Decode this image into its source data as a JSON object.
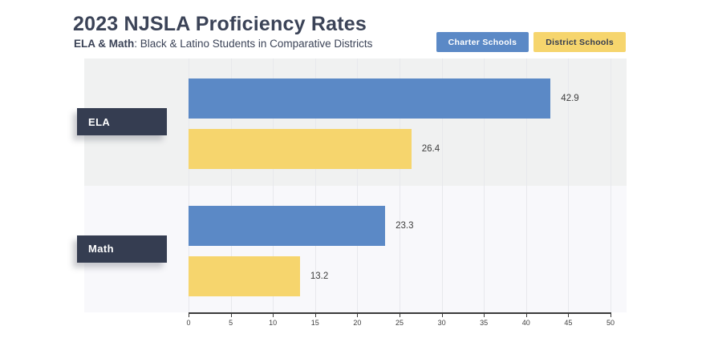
{
  "header": {
    "title": "2023 NJSLA Proficiency Rates",
    "subtitle_bold": "ELA & Math",
    "subtitle_rest": ": Black & Latino Students in Comparative Districts"
  },
  "legend": {
    "items": [
      {
        "label": "Charter Schools",
        "bg": "#5b89c6",
        "text": "#ffffff"
      },
      {
        "label": "District Schools",
        "bg": "#f6d56d",
        "text": "#343b4f"
      }
    ]
  },
  "chart_data": {
    "type": "bar",
    "orientation": "horizontal",
    "title": "2023 NJSLA Proficiency Rates",
    "subtitle": "ELA & Math: Black & Latino Students in Comparative Districts",
    "categories": [
      "ELA",
      "Math"
    ],
    "series": [
      {
        "name": "Charter Schools",
        "color": "#5b89c6",
        "values": [
          42.9,
          23.3
        ]
      },
      {
        "name": "District Schools",
        "color": "#f6d56d",
        "values": [
          26.4,
          13.2
        ]
      }
    ],
    "xlim": [
      0,
      50
    ],
    "x_ticks": [
      0,
      5,
      10,
      15,
      20,
      25,
      30,
      35,
      40,
      45,
      50
    ],
    "grid": true,
    "legend_position": "top-right",
    "value_labels": true
  },
  "style": {
    "band_colors": [
      "#f0f1f1",
      "#f8f8fb"
    ],
    "gridline_color": "#e7e8ec",
    "category_box_bg": "#353d51",
    "category_box_text": "#ffffff",
    "axis_color": "#3a3a3a",
    "tick_label_color": "#3f3f3f",
    "value_label_color": "#3d3d3d",
    "title_color": "#3b4357"
  }
}
